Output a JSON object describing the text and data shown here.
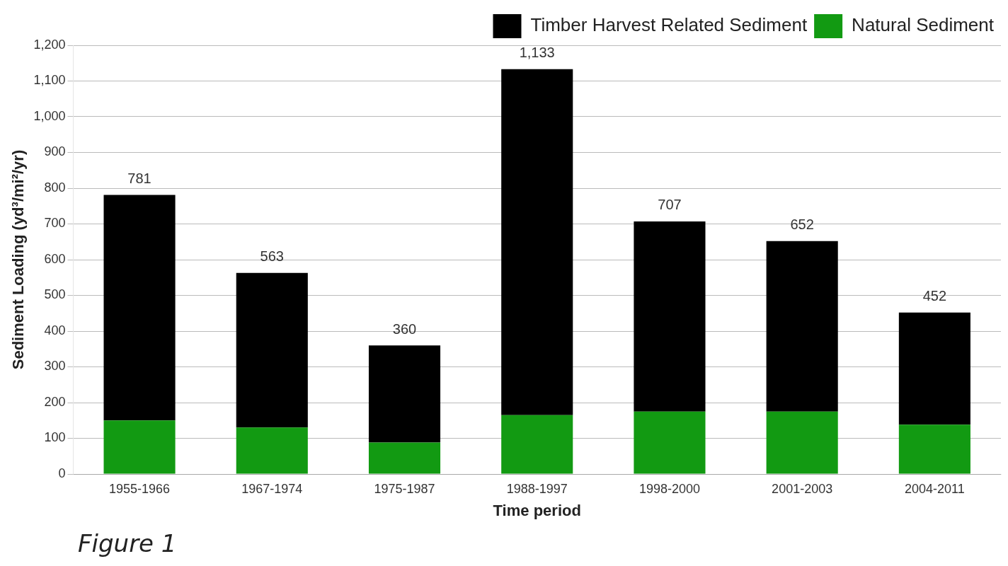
{
  "chart_data": {
    "type": "bar",
    "stacked": true,
    "xlabel": "Time period",
    "ylabel": "Sediment Loading (yd³/mi²/yr)",
    "categories": [
      "1955-1966",
      "1967-1974",
      "1975-1987",
      "1988-1997",
      "1998-2000",
      "2001-2003",
      "2004-2011"
    ],
    "series": [
      {
        "name": "Natural Sediment",
        "color": "#129a12",
        "values": [
          150,
          130,
          88,
          165,
          175,
          175,
          138
        ]
      },
      {
        "name": "Timber Harvest Related Sediment",
        "color": "#000000",
        "values": [
          631,
          433,
          272,
          968,
          532,
          477,
          314
        ]
      }
    ],
    "totals": [
      "781",
      "563",
      "360",
      "1,133",
      "707",
      "652",
      "452"
    ],
    "ylim": [
      0,
      1200
    ],
    "yticks": [
      0,
      100,
      200,
      300,
      400,
      500,
      600,
      700,
      800,
      900,
      {
        "value": 1000,
        "label": "1,000"
      },
      {
        "value": 1100,
        "label": "1,100"
      },
      {
        "value": 1200,
        "label": "1,200"
      }
    ],
    "grid": "y",
    "legend": "top right",
    "annotations": [
      "Figure 1"
    ]
  }
}
